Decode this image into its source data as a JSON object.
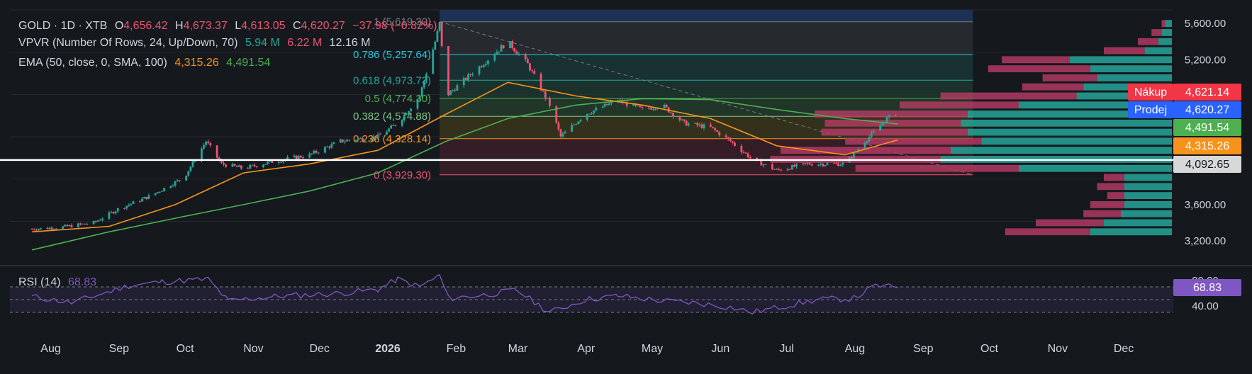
{
  "legend": {
    "symbol": "GOLD · 1D · XTB",
    "o_label": "O",
    "o_val": "4,656.42",
    "h_label": "H",
    "h_val": "4,673.37",
    "l_label": "L",
    "l_val": "4,613.05",
    "c_label": "C",
    "c_val": "4,620.27",
    "change": "−37.98 (−0.82%)",
    "vpvr": "VPVR (Number Of Rows, 24, Up/Down, 70)",
    "vpvr_up": "5.94 M",
    "vpvr_down": "6.22 M",
    "vpvr_total": "12.16 M",
    "ema": "EMA (50, close, 0, SMA, 100)",
    "ema50": "4,315.26",
    "ema100": "4,491.54",
    "rsi": "RSI (14)",
    "rsi_val": "68.83"
  },
  "colors": {
    "bg": "#15191e",
    "grid": "#262a31",
    "up": "#26a69a",
    "down": "#ef5370",
    "ema50": "#f7931a",
    "ema100": "#4caf50",
    "rsi": "#7e57c2",
    "vp_up": "#26a69a",
    "vp_down": "#b03a63"
  },
  "price_labels": {
    "nakup_label": "Nákup",
    "nakup": "4,621.14",
    "prodej_label": "Prodej",
    "prodej": "4,620.27",
    "ema100": "4,491.54",
    "ema50": "4,315.26",
    "line": "4,092.65",
    "rsi": "68.83"
  },
  "chart_data": {
    "type": "candlestick",
    "y_ticks": [
      "5,600.00",
      "5,200.00",
      "3,600.00",
      "3,200.00"
    ],
    "y_range": [
      2950,
      5750
    ],
    "rsi_ticks": [
      "80.00",
      "40.00"
    ],
    "x_ticks": [
      "Aug",
      "Sep",
      "Oct",
      "Nov",
      "Dec",
      "2026",
      "Feb",
      "Mar",
      "Apr",
      "May",
      "Jun",
      "Jul",
      "Aug",
      "Sep",
      "Oct",
      "Nov",
      "Dec"
    ],
    "horizontal_line": 4092.65,
    "fib_levels": [
      {
        "label": "1 (5,619.30)",
        "value": 5619.3
      },
      {
        "label": "0.786 (5,257.64)",
        "value": 5257.64
      },
      {
        "label": "0.618 (4,973.73)",
        "value": 4973.73
      },
      {
        "label": "0.5 (4,774.30)",
        "value": 4774.3
      },
      {
        "label": "0.382 (4,574.88)",
        "value": 4574.88
      },
      {
        "label": "0.236 (4,328.14)",
        "value": 4328.14
      },
      {
        "label": "0 (3,929.30)",
        "value": 3929.3
      }
    ],
    "price_path": [
      [
        "2025-07-28",
        3330
      ],
      [
        "2025-08-10",
        3350
      ],
      [
        "2025-08-25",
        3400
      ],
      [
        "2025-09-05",
        3550
      ],
      [
        "2025-09-20",
        3700
      ],
      [
        "2025-10-05",
        3900
      ],
      [
        "2025-10-15",
        4300
      ],
      [
        "2025-10-22",
        4050
      ],
      [
        "2025-11-01",
        4000
      ],
      [
        "2025-11-15",
        4080
      ],
      [
        "2025-12-01",
        4150
      ],
      [
        "2025-12-15",
        4300
      ],
      [
        "2026-01-01",
        4350
      ],
      [
        "2026-01-10",
        4500
      ],
      [
        "2026-01-20",
        4800
      ],
      [
        "2026-01-27",
        5400
      ],
      [
        "2026-01-29",
        5600
      ],
      [
        "2026-02-01",
        4800
      ],
      [
        "2026-02-15",
        5100
      ],
      [
        "2026-03-01",
        5400
      ],
      [
        "2026-03-10",
        5150
      ],
      [
        "2026-03-20",
        4700
      ],
      [
        "2026-03-25",
        4350
      ],
      [
        "2026-04-05",
        4600
      ],
      [
        "2026-04-20",
        4750
      ],
      [
        "2026-05-01",
        4650
      ],
      [
        "2026-05-10",
        4700
      ],
      [
        "2026-05-20",
        4500
      ],
      [
        "2026-06-01",
        4450
      ],
      [
        "2026-06-10",
        4300
      ],
      [
        "2026-06-20",
        4100
      ],
      [
        "2026-07-01",
        3980
      ],
      [
        "2026-07-15",
        4050
      ],
      [
        "2026-08-01",
        4050
      ],
      [
        "2026-08-10",
        4300
      ],
      [
        "2026-08-20",
        4550
      ],
      [
        "2026-08-25",
        4620
      ]
    ],
    "ema50_path": [
      [
        "2025-07-28",
        3300
      ],
      [
        "2025-09-01",
        3360
      ],
      [
        "2025-10-01",
        3600
      ],
      [
        "2025-11-01",
        3950
      ],
      [
        "2025-12-01",
        4050
      ],
      [
        "2026-01-01",
        4200
      ],
      [
        "2026-02-01",
        4600
      ],
      [
        "2026-03-01",
        4950
      ],
      [
        "2026-04-01",
        4800
      ],
      [
        "2026-05-01",
        4700
      ],
      [
        "2026-06-01",
        4550
      ],
      [
        "2026-07-01",
        4250
      ],
      [
        "2026-08-01",
        4150
      ],
      [
        "2026-08-25",
        4315
      ]
    ],
    "ema100_path": [
      [
        "2025-07-28",
        3100
      ],
      [
        "2025-09-01",
        3300
      ],
      [
        "2025-10-01",
        3450
      ],
      [
        "2025-11-01",
        3600
      ],
      [
        "2025-12-01",
        3750
      ],
      [
        "2026-01-01",
        3950
      ],
      [
        "2026-02-01",
        4300
      ],
      [
        "2026-03-01",
        4550
      ],
      [
        "2026-04-01",
        4700
      ],
      [
        "2026-05-01",
        4770
      ],
      [
        "2026-06-01",
        4760
      ],
      [
        "2026-07-01",
        4650
      ],
      [
        "2026-08-01",
        4550
      ],
      [
        "2026-08-25",
        4491
      ]
    ],
    "rsi_path": [
      [
        "2025-07-28",
        55
      ],
      [
        "2025-08-15",
        45
      ],
      [
        "2025-09-10",
        72
      ],
      [
        "2025-09-25",
        78
      ],
      [
        "2025-10-16",
        82
      ],
      [
        "2025-10-25",
        48
      ],
      [
        "2025-11-15",
        55
      ],
      [
        "2025-12-15",
        60
      ],
      [
        "2026-01-01",
        66
      ],
      [
        "2026-01-10",
        82
      ],
      [
        "2026-01-20",
        70
      ],
      [
        "2026-01-29",
        88
      ],
      [
        "2026-02-02",
        52
      ],
      [
        "2026-02-20",
        58
      ],
      [
        "2026-03-05",
        65
      ],
      [
        "2026-03-20",
        30
      ],
      [
        "2026-04-05",
        50
      ],
      [
        "2026-04-20",
        56
      ],
      [
        "2026-05-10",
        48
      ],
      [
        "2026-05-25",
        45
      ],
      [
        "2026-06-10",
        38
      ],
      [
        "2026-06-20",
        30
      ],
      [
        "2026-07-05",
        40
      ],
      [
        "2026-07-20",
        50
      ],
      [
        "2026-08-05",
        52
      ],
      [
        "2026-08-15",
        72
      ],
      [
        "2026-08-25",
        68.83
      ]
    ],
    "volume_profile": [
      {
        "price": 5600,
        "up": 0.02,
        "down": 0.01
      },
      {
        "price": 5500,
        "up": 0.03,
        "down": 0.03
      },
      {
        "price": 5400,
        "up": 0.04,
        "down": 0.06
      },
      {
        "price": 5300,
        "up": 0.08,
        "down": 0.12
      },
      {
        "price": 5200,
        "up": 0.3,
        "down": 0.2
      },
      {
        "price": 5100,
        "up": 0.24,
        "down": 0.3
      },
      {
        "price": 5000,
        "up": 0.22,
        "down": 0.16
      },
      {
        "price": 4900,
        "up": 0.26,
        "down": 0.18
      },
      {
        "price": 4800,
        "up": 0.28,
        "down": 0.4
      },
      {
        "price": 4700,
        "up": 0.45,
        "down": 0.35
      },
      {
        "price": 4600,
        "up": 0.6,
        "down": 0.45
      },
      {
        "price": 4500,
        "up": 0.62,
        "down": 0.4
      },
      {
        "price": 4400,
        "up": 0.6,
        "down": 0.43
      },
      {
        "price": 4300,
        "up": 0.56,
        "down": 0.4
      },
      {
        "price": 4200,
        "up": 0.65,
        "down": 0.5
      },
      {
        "price": 4100,
        "up": 0.68,
        "down": 0.5
      },
      {
        "price": 4000,
        "up": 0.45,
        "down": 0.48
      },
      {
        "price": 3900,
        "up": 0.14,
        "down": 0.06
      },
      {
        "price": 3800,
        "up": 0.14,
        "down": 0.08
      },
      {
        "price": 3700,
        "up": 0.14,
        "down": 0.05
      },
      {
        "price": 3600,
        "up": 0.14,
        "down": 0.1
      },
      {
        "price": 3500,
        "up": 0.15,
        "down": 0.11
      },
      {
        "price": 3400,
        "up": 0.2,
        "down": 0.2
      },
      {
        "price": 3300,
        "up": 0.24,
        "down": 0.25
      }
    ]
  }
}
